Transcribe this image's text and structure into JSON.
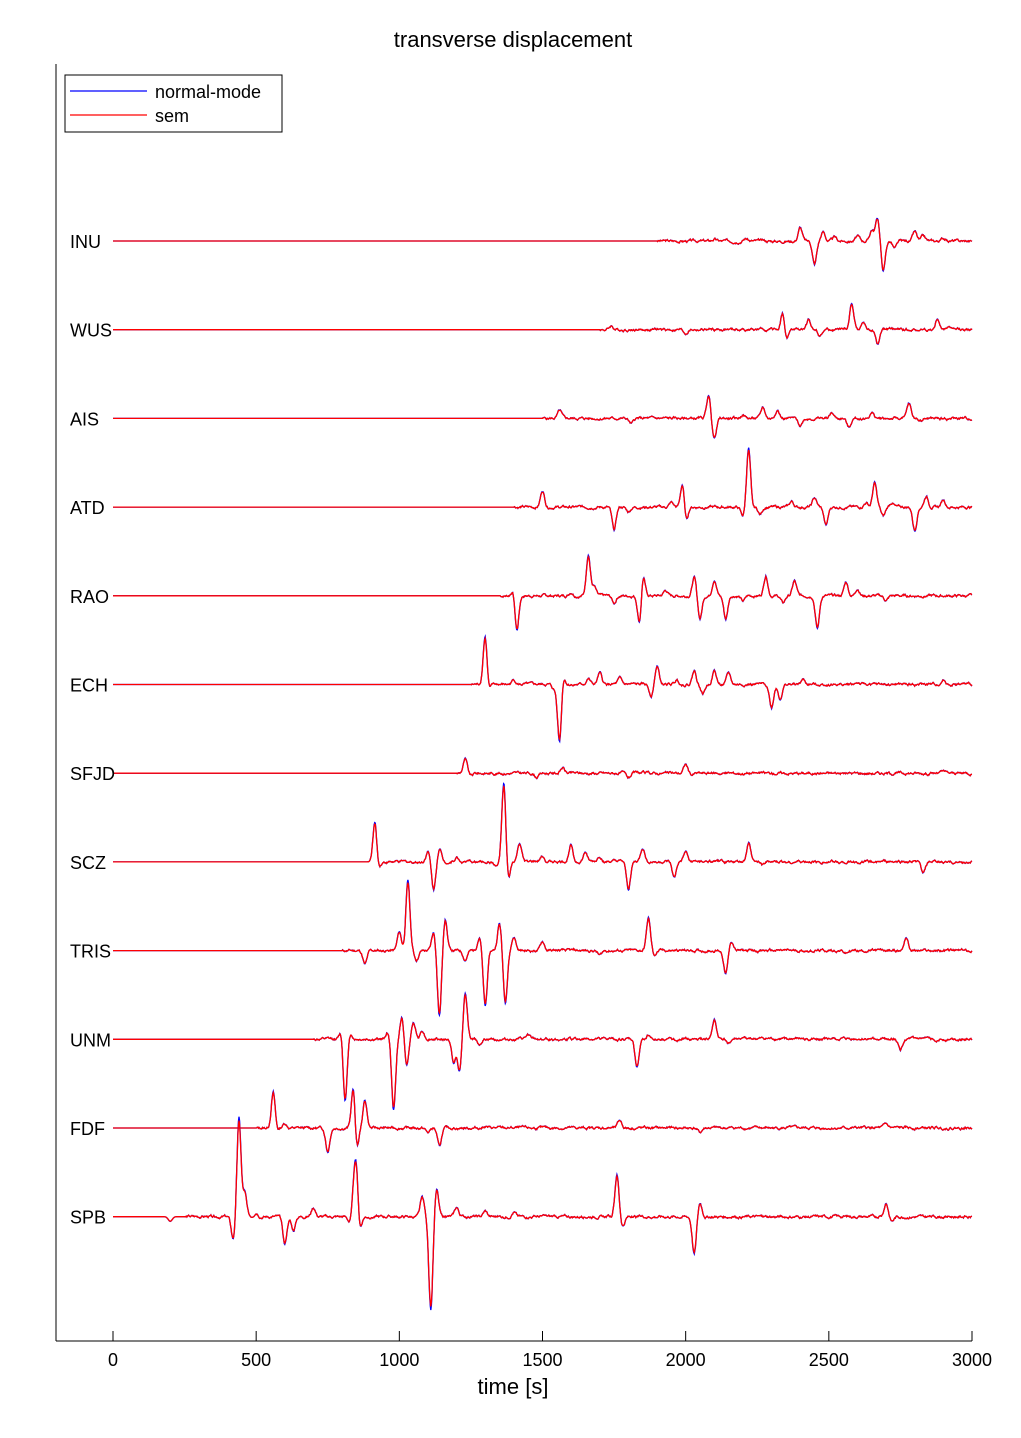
{
  "chart_data": {
    "type": "line",
    "title": "transverse displacement",
    "xlabel": "time [s]",
    "ylabel": "",
    "xlim": [
      -200,
      3000
    ],
    "xticks": [
      0,
      500,
      1000,
      1500,
      2000,
      2500,
      3000
    ],
    "grid": false,
    "legend": {
      "placement": "top-left",
      "entries": [
        {
          "name": "normal-mode",
          "color": "#0000ff"
        },
        {
          "name": "sem",
          "color": "#ff0000"
        }
      ]
    },
    "trace_amplitude_unit": "relative (station offset = 1)",
    "stations": [
      {
        "name": "INU",
        "onset": 1900,
        "peaks": [
          [
            2100,
            0.02
          ],
          [
            2210,
            0.03
          ],
          [
            2400,
            0.15
          ],
          [
            2450,
            -0.25
          ],
          [
            2480,
            0.1
          ],
          [
            2520,
            0.04
          ],
          [
            2600,
            0.05
          ],
          [
            2650,
            0.12
          ],
          [
            2670,
            0.25
          ],
          [
            2690,
            -0.32
          ],
          [
            2730,
            -0.08
          ],
          [
            2800,
            0.1
          ],
          [
            2830,
            0.05
          ],
          [
            2900,
            0.03
          ]
        ]
      },
      {
        "name": "WUS",
        "onset": 1700,
        "peaks": [
          [
            1740,
            0.04
          ],
          [
            2000,
            -0.04
          ],
          [
            2340,
            0.22
          ],
          [
            2350,
            -0.15
          ],
          [
            2430,
            0.1
          ],
          [
            2470,
            -0.06
          ],
          [
            2580,
            0.28
          ],
          [
            2620,
            0.08
          ],
          [
            2670,
            -0.16
          ],
          [
            2880,
            0.12
          ],
          [
            2920,
            0.04
          ]
        ]
      },
      {
        "name": "AIS",
        "onset": 1500,
        "peaks": [
          [
            1560,
            0.08
          ],
          [
            1810,
            -0.06
          ],
          [
            2080,
            0.25
          ],
          [
            2100,
            -0.22
          ],
          [
            2200,
            0.04
          ],
          [
            2270,
            0.12
          ],
          [
            2320,
            0.1
          ],
          [
            2400,
            -0.08
          ],
          [
            2510,
            0.06
          ],
          [
            2570,
            -0.1
          ],
          [
            2650,
            0.06
          ],
          [
            2780,
            0.16
          ],
          [
            2820,
            -0.02
          ]
        ]
      },
      {
        "name": "ATD",
        "onset": 1400,
        "peaks": [
          [
            1500,
            0.18
          ],
          [
            1750,
            -0.25
          ],
          [
            1800,
            -0.05
          ],
          [
            1950,
            0.05
          ],
          [
            1990,
            0.3
          ],
          [
            2000,
            -0.2
          ],
          [
            2200,
            -0.1
          ],
          [
            2220,
            0.65
          ],
          [
            2230,
            -0.05
          ],
          [
            2260,
            -0.08
          ],
          [
            2370,
            0.06
          ],
          [
            2450,
            0.1
          ],
          [
            2490,
            -0.2
          ],
          [
            2630,
            0.05
          ],
          [
            2660,
            0.26
          ],
          [
            2690,
            -0.1
          ],
          [
            2720,
            0.05
          ],
          [
            2800,
            -0.25
          ],
          [
            2840,
            0.12
          ],
          [
            2900,
            0.08
          ]
        ]
      },
      {
        "name": "RAO",
        "onset": 1350,
        "peaks": [
          [
            1400,
            0.1
          ],
          [
            1410,
            -0.4
          ],
          [
            1600,
            0.04
          ],
          [
            1660,
            0.45
          ],
          [
            1680,
            0.1
          ],
          [
            1750,
            -0.08
          ],
          [
            1840,
            -0.35
          ],
          [
            1850,
            0.28
          ],
          [
            1930,
            0.06
          ],
          [
            2030,
            0.2
          ],
          [
            2050,
            -0.25
          ],
          [
            2100,
            0.18
          ],
          [
            2140,
            -0.25
          ],
          [
            2200,
            -0.06
          ],
          [
            2280,
            0.22
          ],
          [
            2340,
            -0.08
          ],
          [
            2380,
            0.16
          ],
          [
            2460,
            -0.35
          ],
          [
            2560,
            0.15
          ],
          [
            2600,
            0.08
          ],
          [
            2700,
            -0.05
          ]
        ]
      },
      {
        "name": "ECH",
        "onset": 1250,
        "peaks": [
          [
            1300,
            0.55
          ],
          [
            1310,
            -0.1
          ],
          [
            1400,
            0.05
          ],
          [
            1540,
            -0.05
          ],
          [
            1560,
            -0.65
          ],
          [
            1570,
            0.15
          ],
          [
            1660,
            0.06
          ],
          [
            1700,
            0.12
          ],
          [
            1770,
            0.06
          ],
          [
            1880,
            -0.12
          ],
          [
            1900,
            0.2
          ],
          [
            1970,
            0.05
          ],
          [
            2030,
            0.15
          ],
          [
            2060,
            -0.1
          ],
          [
            2100,
            0.15
          ],
          [
            2150,
            0.12
          ],
          [
            2300,
            -0.25
          ],
          [
            2330,
            -0.15
          ],
          [
            2410,
            0.05
          ],
          [
            2600,
            0.02
          ],
          [
            2900,
            0.05
          ]
        ]
      },
      {
        "name": "SFJD",
        "onset": 1200,
        "peaks": [
          [
            1230,
            0.15
          ],
          [
            1250,
            -0.03
          ],
          [
            1480,
            -0.04
          ],
          [
            1570,
            0.06
          ],
          [
            1800,
            -0.05
          ],
          [
            2000,
            0.1
          ],
          [
            2020,
            -0.02
          ],
          [
            2900,
            0.02
          ]
        ]
      },
      {
        "name": "SCZ",
        "onset": 900,
        "peaks": [
          [
            915,
            0.45
          ],
          [
            925,
            -0.1
          ],
          [
            1100,
            0.12
          ],
          [
            1120,
            -0.3
          ],
          [
            1140,
            0.15
          ],
          [
            1200,
            0.05
          ],
          [
            1340,
            -0.05
          ],
          [
            1365,
            0.85
          ],
          [
            1380,
            -0.22
          ],
          [
            1420,
            0.2
          ],
          [
            1500,
            0.06
          ],
          [
            1600,
            0.2
          ],
          [
            1650,
            0.1
          ],
          [
            1700,
            0.06
          ],
          [
            1800,
            -0.3
          ],
          [
            1850,
            0.15
          ],
          [
            1960,
            -0.18
          ],
          [
            2000,
            0.1
          ],
          [
            2220,
            0.2
          ],
          [
            2270,
            -0.03
          ],
          [
            2830,
            -0.12
          ]
        ]
      },
      {
        "name": "TRIS",
        "onset": 800,
        "peaks": [
          [
            880,
            -0.15
          ],
          [
            1000,
            0.2
          ],
          [
            1030,
            0.75
          ],
          [
            1060,
            -0.1
          ],
          [
            1120,
            0.2
          ],
          [
            1140,
            -0.7
          ],
          [
            1160,
            0.35
          ],
          [
            1230,
            -0.1
          ],
          [
            1280,
            0.15
          ],
          [
            1300,
            -0.6
          ],
          [
            1350,
            0.3
          ],
          [
            1370,
            -0.55
          ],
          [
            1400,
            0.15
          ],
          [
            1500,
            0.1
          ],
          [
            1700,
            -0.05
          ],
          [
            1870,
            0.35
          ],
          [
            1890,
            -0.05
          ],
          [
            2140,
            -0.25
          ],
          [
            2160,
            0.1
          ],
          [
            2560,
            -0.03
          ],
          [
            2770,
            0.15
          ]
        ]
      },
      {
        "name": "UNM",
        "onset": 700,
        "peaks": [
          [
            800,
            0.15
          ],
          [
            810,
            -0.7
          ],
          [
            830,
            0.05
          ],
          [
            960,
            0.08
          ],
          [
            980,
            -0.75
          ],
          [
            1010,
            0.25
          ],
          [
            1025,
            -0.3
          ],
          [
            1050,
            0.18
          ],
          [
            1080,
            0.1
          ],
          [
            1190,
            -0.25
          ],
          [
            1210,
            -0.35
          ],
          [
            1230,
            0.5
          ],
          [
            1280,
            -0.05
          ],
          [
            1450,
            0.04
          ],
          [
            1830,
            -0.3
          ],
          [
            1870,
            0.05
          ],
          [
            2100,
            0.2
          ],
          [
            2150,
            -0.05
          ],
          [
            2750,
            -0.12
          ]
        ]
      },
      {
        "name": "FDF",
        "onset": 500,
        "peaks": [
          [
            560,
            0.4
          ],
          [
            570,
            -0.05
          ],
          [
            600,
            0.05
          ],
          [
            750,
            -0.25
          ],
          [
            840,
            0.5
          ],
          [
            850,
            -0.3
          ],
          [
            880,
            0.3
          ],
          [
            1100,
            -0.05
          ],
          [
            1140,
            -0.2
          ],
          [
            1300,
            0.02
          ],
          [
            1770,
            0.08
          ],
          [
            2050,
            -0.05
          ],
          [
            2700,
            0.04
          ]
        ]
      },
      {
        "name": "SPB",
        "onset": 250,
        "peaks": [
          [
            200,
            -0.05
          ],
          [
            420,
            -0.25
          ],
          [
            440,
            1.05
          ],
          [
            460,
            0.25
          ],
          [
            500,
            0.05
          ],
          [
            600,
            -0.3
          ],
          [
            630,
            -0.15
          ],
          [
            700,
            0.1
          ],
          [
            830,
            -0.1
          ],
          [
            840,
            0.25
          ],
          [
            850,
            0.55
          ],
          [
            860,
            -0.2
          ],
          [
            1080,
            0.2
          ],
          [
            1110,
            -1.0
          ],
          [
            1130,
            0.3
          ],
          [
            1200,
            0.1
          ],
          [
            1300,
            0.06
          ],
          [
            1400,
            0.05
          ],
          [
            1760,
            0.45
          ],
          [
            1780,
            -0.1
          ],
          [
            2030,
            -0.4
          ],
          [
            2050,
            0.15
          ],
          [
            2700,
            0.15
          ],
          [
            2720,
            -0.05
          ]
        ]
      }
    ]
  }
}
